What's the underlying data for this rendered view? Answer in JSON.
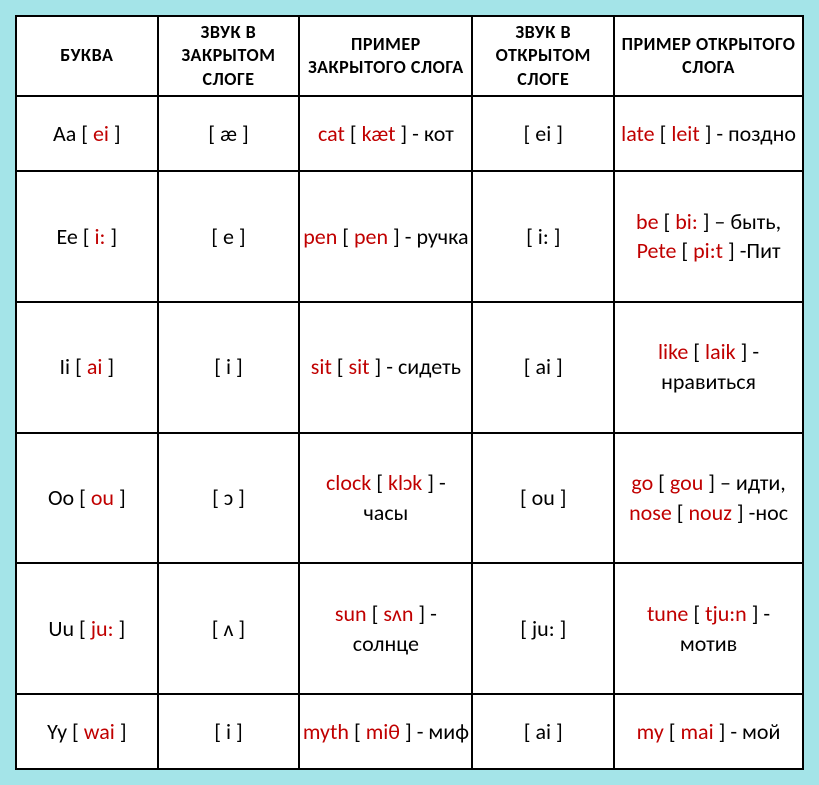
{
  "table": {
    "background_page": "#a4e4e8",
    "background_cell": "#ffffff",
    "border_color": "#000000",
    "header_fontsize": 18,
    "cell_fontsize": 22,
    "red": "#c00000",
    "black": "#000000",
    "columns": [
      "БУКВА",
      "ЗВУК В ЗАКРЫТОМ СЛОГЕ",
      "ПРИМЕР ЗАКРЫТОГО СЛОГА",
      "ЗВУК В ОТКРЫТОМ СЛОГЕ",
      "ПРИМЕР ОТКРЫТОГО СЛОГА"
    ],
    "rows": [
      {
        "letter_pre": "Aa [ ",
        "letter_red": "ei",
        "letter_post": " ]",
        "closed_sound": "[ æ ]",
        "closed_ex_red1": "cat",
        "closed_ex_mid1": " [ ",
        "closed_ex_red2": "kæt",
        "closed_ex_tail": " ] - кот",
        "open_sound": "[ ei ]",
        "open_ex_red1": "late",
        "open_ex_mid1": " [ ",
        "open_ex_red2": "leit",
        "open_ex_tail": " ] - поздно"
      },
      {
        "letter_pre": "Ee [ ",
        "letter_red": "i:",
        "letter_post": " ]",
        "closed_sound": "[ e ]",
        "closed_ex_red1": "pen",
        "closed_ex_mid1": " [ ",
        "closed_ex_red2": "pen",
        "closed_ex_tail": " ] - ручка",
        "open_sound": "[ i: ]",
        "open_ex_red1": "be",
        "open_ex_mid1": " [ ",
        "open_ex_red2": "bi:",
        "open_ex_mid2": " ] – быть, ",
        "open_ex_red3": "Pete",
        "open_ex_mid3": " [ ",
        "open_ex_red4": "pi:t",
        "open_ex_tail": " ] -Пит"
      },
      {
        "letter_pre": "Ii [ ",
        "letter_red": "ai",
        "letter_post": " ]",
        "closed_sound": "[ i ]",
        "closed_ex_red1": "sit",
        "closed_ex_mid1": " [ ",
        "closed_ex_red2": "sit",
        "closed_ex_tail": " ] - сидеть",
        "open_sound": "[ ai ]",
        "open_ex_red1": "like",
        "open_ex_mid1": " [ ",
        "open_ex_red2": "laik",
        "open_ex_tail": " ] - нравиться"
      },
      {
        "letter_pre": "Oo [ ",
        "letter_red": "ou",
        "letter_post": " ]",
        "closed_sound": "[ ɔ ]",
        "closed_ex_red1": "clock",
        "closed_ex_mid1": " [ ",
        "closed_ex_red2": "klɔk",
        "closed_ex_tail": " ] - часы",
        "open_sound": "[ ou ]",
        "open_ex_red1": "go",
        "open_ex_mid1": " [ ",
        "open_ex_red2": "gou",
        "open_ex_mid2": " ] – идти, ",
        "open_ex_red3": "nose",
        "open_ex_mid3": " [ ",
        "open_ex_red4": "nouz",
        "open_ex_tail": " ] -нос"
      },
      {
        "letter_pre": "Uu [ ",
        "letter_red": "ju:",
        "letter_post": " ]",
        "closed_sound": "[ ʌ ]",
        "closed_ex_red1": "sun",
        "closed_ex_mid1": " [ ",
        "closed_ex_red2": "sʌn",
        "closed_ex_tail": " ] - солнце",
        "open_sound": "[ ju: ]",
        "open_ex_red1": "tune",
        "open_ex_mid1": " [ ",
        "open_ex_red2": "tju:n",
        "open_ex_tail": " ] - мотив"
      },
      {
        "letter_pre": "Yy [ ",
        "letter_red": "wai",
        "letter_post": " ]",
        "closed_sound": "[ i ]",
        "closed_ex_red1": "myth",
        "closed_ex_mid1": " [ ",
        "closed_ex_red2": "miθ",
        "closed_ex_tail": " ] - миф",
        "open_sound": "[ ai ]",
        "open_ex_red1": "my",
        "open_ex_mid1": " [ ",
        "open_ex_red2": "mai",
        "open_ex_tail": " ] - мой"
      }
    ]
  }
}
